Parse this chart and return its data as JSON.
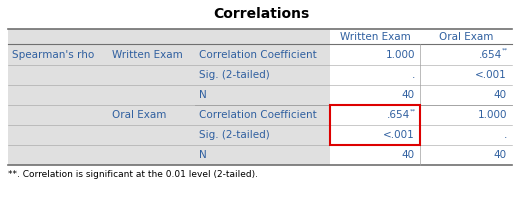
{
  "title": "Correlations",
  "col_headers_written": "Written Exam",
  "col_headers_oral": "Oral Exam",
  "rows": [
    {
      "col0": "Spearman's rho",
      "col1": "Written Exam",
      "col2": "Correlation Coefficient",
      "col3": "1.000",
      "col3_sup": false,
      "col4": ".654",
      "col4_sup": true
    },
    {
      "col0": "",
      "col1": "",
      "col2": "Sig. (2-tailed)",
      "col3": ".",
      "col3_sup": false,
      "col4": "<.001",
      "col4_sup": false
    },
    {
      "col0": "",
      "col1": "",
      "col2": "N",
      "col3": "40",
      "col3_sup": false,
      "col4": "40",
      "col4_sup": false
    },
    {
      "col0": "",
      "col1": "Oral Exam",
      "col2": "Correlation Coefficient",
      "col3": ".654",
      "col3_sup": true,
      "col4": "1.000",
      "col4_sup": false
    },
    {
      "col0": "",
      "col1": "",
      "col2": "Sig. (2-tailed)",
      "col3": "<.001",
      "col3_sup": false,
      "col4": ".",
      "col4_sup": false
    },
    {
      "col0": "",
      "col1": "",
      "col2": "N",
      "col3": "40",
      "col3_sup": false,
      "col4": "40",
      "col4_sup": false
    }
  ],
  "footnote": "**. Correlation is significant at the 0.01 level (2-tailed).",
  "bg_gray": "#e0e0e0",
  "bg_white": "#ffffff",
  "text_blue": "#3060a0",
  "text_black": "#000000",
  "line_color": "#a0a0a0",
  "line_color_thick": "#707070",
  "red_box_color": "#dd0000",
  "sup_text": "**",
  "figsize": [
    5.21,
    2.12
  ],
  "dpi": 100
}
